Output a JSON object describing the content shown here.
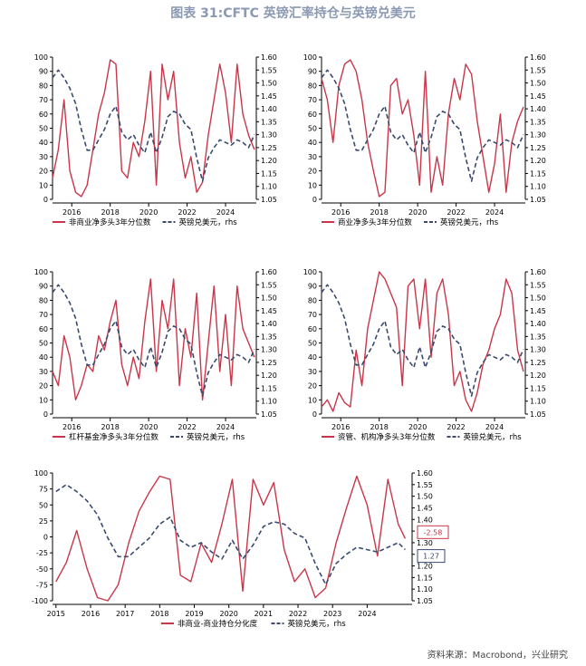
{
  "title": "图表 31:CFTC 英镑汇率持仓与英镑兑美元",
  "source": "资料来源：Macrobond，兴业研究",
  "colors": {
    "red": "#c9364a",
    "navy": "#3a4a6e",
    "title": "#8c99b3"
  },
  "chart_data": [
    {
      "type": "line",
      "ylim": [
        0,
        100
      ],
      "y_ticks": [
        0,
        10,
        20,
        30,
        40,
        50,
        60,
        70,
        80,
        90,
        100
      ],
      "y2lim": [
        1.05,
        1.6
      ],
      "y2_ticks": [
        "1.05",
        "1.10",
        "1.15",
        "1.20",
        "1.25",
        "1.30",
        "1.35",
        "1.40",
        "1.45",
        "1.50",
        "1.55",
        "1.60"
      ],
      "xlim": [
        2015.0,
        2025.6
      ],
      "x_ticks": [
        2016,
        2018,
        2020,
        2022,
        2024
      ],
      "legend": "bottom",
      "series": [
        {
          "name": "非商业净多头3年分位数",
          "axis": "left",
          "style": "solid",
          "x": [
            2015.0,
            2015.3,
            2015.6,
            2015.9,
            2016.2,
            2016.5,
            2016.8,
            2017.1,
            2017.4,
            2017.7,
            2018.0,
            2018.3,
            2018.6,
            2018.9,
            2019.2,
            2019.5,
            2019.8,
            2020.1,
            2020.4,
            2020.7,
            2021.0,
            2021.3,
            2021.6,
            2021.9,
            2022.2,
            2022.5,
            2022.8,
            2023.1,
            2023.4,
            2023.7,
            2024.0,
            2024.3,
            2024.6,
            2024.9,
            2025.2,
            2025.5
          ],
          "values": [
            15,
            35,
            70,
            20,
            5,
            2,
            10,
            35,
            60,
            75,
            98,
            95,
            20,
            15,
            40,
            30,
            55,
            90,
            10,
            95,
            70,
            90,
            40,
            15,
            30,
            5,
            12,
            45,
            70,
            95,
            75,
            40,
            95,
            60,
            45,
            35
          ]
        },
        {
          "name": "英镑兑美元，rhs",
          "axis": "right",
          "style": "dashed",
          "x": [
            2015.0,
            2015.3,
            2015.6,
            2015.9,
            2016.2,
            2016.5,
            2016.8,
            2017.1,
            2017.4,
            2017.7,
            2018.0,
            2018.3,
            2018.6,
            2018.9,
            2019.2,
            2019.5,
            2019.8,
            2020.1,
            2020.4,
            2020.7,
            2021.0,
            2021.3,
            2021.6,
            2021.9,
            2022.2,
            2022.5,
            2022.8,
            2023.1,
            2023.4,
            2023.7,
            2024.0,
            2024.3,
            2024.6,
            2024.9,
            2025.2,
            2025.5
          ],
          "values": [
            1.52,
            1.55,
            1.52,
            1.48,
            1.42,
            1.32,
            1.24,
            1.24,
            1.28,
            1.32,
            1.38,
            1.41,
            1.31,
            1.28,
            1.3,
            1.26,
            1.23,
            1.31,
            1.23,
            1.29,
            1.37,
            1.39,
            1.38,
            1.34,
            1.32,
            1.21,
            1.12,
            1.21,
            1.25,
            1.28,
            1.27,
            1.26,
            1.28,
            1.27,
            1.25,
            1.3
          ]
        }
      ]
    },
    {
      "type": "line",
      "ylim": [
        0,
        100
      ],
      "y_ticks": [
        0,
        10,
        20,
        30,
        40,
        50,
        60,
        70,
        80,
        90,
        100
      ],
      "y2lim": [
        1.05,
        1.6
      ],
      "y2_ticks": [
        "1.05",
        "1.10",
        "1.15",
        "1.20",
        "1.25",
        "1.30",
        "1.35",
        "1.40",
        "1.45",
        "1.50",
        "1.55",
        "1.60"
      ],
      "xlim": [
        2015.0,
        2025.6
      ],
      "x_ticks": [
        2016,
        2018,
        2020,
        2022,
        2024
      ],
      "legend": "bottom",
      "series": [
        {
          "name": "商业净多头3年分位数",
          "axis": "left",
          "style": "solid",
          "x": [
            2015.0,
            2015.3,
            2015.6,
            2015.9,
            2016.2,
            2016.5,
            2016.8,
            2017.1,
            2017.4,
            2017.7,
            2018.0,
            2018.3,
            2018.6,
            2018.9,
            2019.2,
            2019.5,
            2019.8,
            2020.1,
            2020.4,
            2020.7,
            2021.0,
            2021.3,
            2021.6,
            2021.9,
            2022.2,
            2022.5,
            2022.8,
            2023.1,
            2023.4,
            2023.7,
            2024.0,
            2024.3,
            2024.6,
            2024.9,
            2025.2,
            2025.5
          ],
          "values": [
            85,
            70,
            40,
            80,
            95,
            98,
            90,
            70,
            40,
            20,
            2,
            5,
            80,
            85,
            60,
            70,
            45,
            10,
            90,
            5,
            30,
            10,
            60,
            85,
            70,
            95,
            88,
            55,
            30,
            5,
            25,
            60,
            5,
            40,
            55,
            65
          ]
        },
        {
          "name": "英镑兑美元，rhs",
          "axis": "right",
          "style": "dashed",
          "x": [
            2015.0,
            2015.3,
            2015.6,
            2015.9,
            2016.2,
            2016.5,
            2016.8,
            2017.1,
            2017.4,
            2017.7,
            2018.0,
            2018.3,
            2018.6,
            2018.9,
            2019.2,
            2019.5,
            2019.8,
            2020.1,
            2020.4,
            2020.7,
            2021.0,
            2021.3,
            2021.6,
            2021.9,
            2022.2,
            2022.5,
            2022.8,
            2023.1,
            2023.4,
            2023.7,
            2024.0,
            2024.3,
            2024.6,
            2024.9,
            2025.2,
            2025.5
          ],
          "values": [
            1.52,
            1.55,
            1.52,
            1.48,
            1.42,
            1.32,
            1.24,
            1.24,
            1.28,
            1.32,
            1.38,
            1.41,
            1.31,
            1.28,
            1.3,
            1.26,
            1.23,
            1.31,
            1.23,
            1.29,
            1.37,
            1.39,
            1.38,
            1.34,
            1.32,
            1.21,
            1.12,
            1.21,
            1.25,
            1.28,
            1.27,
            1.26,
            1.28,
            1.27,
            1.25,
            1.3
          ]
        }
      ]
    },
    {
      "type": "line",
      "ylim": [
        0,
        100
      ],
      "y_ticks": [
        0,
        10,
        20,
        30,
        40,
        50,
        60,
        70,
        80,
        90,
        100
      ],
      "y2lim": [
        1.05,
        1.6
      ],
      "y2_ticks": [
        "1.05",
        "1.10",
        "1.15",
        "1.20",
        "1.25",
        "1.30",
        "1.35",
        "1.40",
        "1.45",
        "1.50",
        "1.55",
        "1.60"
      ],
      "xlim": [
        2015.0,
        2025.6
      ],
      "x_ticks": [
        2016,
        2018,
        2020,
        2022,
        2024
      ],
      "legend": "bottom",
      "series": [
        {
          "name": "杠杆基金净多头3年分位数",
          "axis": "left",
          "style": "solid",
          "x": [
            2015.0,
            2015.3,
            2015.6,
            2015.9,
            2016.2,
            2016.5,
            2016.8,
            2017.1,
            2017.4,
            2017.7,
            2018.0,
            2018.3,
            2018.6,
            2018.9,
            2019.2,
            2019.5,
            2019.8,
            2020.1,
            2020.4,
            2020.7,
            2021.0,
            2021.3,
            2021.6,
            2021.9,
            2022.2,
            2022.5,
            2022.8,
            2023.1,
            2023.4,
            2023.7,
            2024.0,
            2024.3,
            2024.6,
            2024.9,
            2025.2,
            2025.5
          ],
          "values": [
            30,
            20,
            55,
            40,
            10,
            20,
            35,
            30,
            55,
            45,
            65,
            80,
            35,
            20,
            40,
            25,
            65,
            95,
            30,
            80,
            60,
            95,
            20,
            60,
            40,
            85,
            10,
            50,
            90,
            30,
            70,
            20,
            90,
            60,
            50,
            40
          ]
        },
        {
          "name": "英镑兑美元，rhs",
          "axis": "right",
          "style": "dashed",
          "x": [
            2015.0,
            2015.3,
            2015.6,
            2015.9,
            2016.2,
            2016.5,
            2016.8,
            2017.1,
            2017.4,
            2017.7,
            2018.0,
            2018.3,
            2018.6,
            2018.9,
            2019.2,
            2019.5,
            2019.8,
            2020.1,
            2020.4,
            2020.7,
            2021.0,
            2021.3,
            2021.6,
            2021.9,
            2022.2,
            2022.5,
            2022.8,
            2023.1,
            2023.4,
            2023.7,
            2024.0,
            2024.3,
            2024.6,
            2024.9,
            2025.2,
            2025.5
          ],
          "values": [
            1.52,
            1.55,
            1.52,
            1.48,
            1.42,
            1.32,
            1.24,
            1.24,
            1.28,
            1.32,
            1.38,
            1.41,
            1.31,
            1.28,
            1.3,
            1.26,
            1.23,
            1.31,
            1.23,
            1.29,
            1.37,
            1.39,
            1.38,
            1.34,
            1.32,
            1.21,
            1.12,
            1.21,
            1.25,
            1.28,
            1.27,
            1.26,
            1.28,
            1.27,
            1.25,
            1.3
          ]
        }
      ]
    },
    {
      "type": "line",
      "ylim": [
        0,
        100
      ],
      "y_ticks": [
        0,
        10,
        20,
        30,
        40,
        50,
        60,
        70,
        80,
        90,
        100
      ],
      "y2lim": [
        1.05,
        1.6
      ],
      "y2_ticks": [
        "1.05",
        "1.10",
        "1.15",
        "1.20",
        "1.25",
        "1.30",
        "1.35",
        "1.40",
        "1.45",
        "1.50",
        "1.55",
        "1.60"
      ],
      "xlim": [
        2015.0,
        2025.6
      ],
      "x_ticks": [
        2016,
        2018,
        2020,
        2022,
        2024
      ],
      "legend": "bottom",
      "series": [
        {
          "name": "资管、机构净多头3年分位数",
          "axis": "left",
          "style": "solid",
          "x": [
            2015.0,
            2015.3,
            2015.6,
            2015.9,
            2016.2,
            2016.5,
            2016.8,
            2017.1,
            2017.4,
            2017.7,
            2018.0,
            2018.3,
            2018.6,
            2018.9,
            2019.2,
            2019.5,
            2019.8,
            2020.1,
            2020.4,
            2020.7,
            2021.0,
            2021.3,
            2021.6,
            2021.9,
            2022.2,
            2022.5,
            2022.8,
            2023.1,
            2023.4,
            2023.7,
            2024.0,
            2024.3,
            2024.6,
            2024.9,
            2025.2,
            2025.5
          ],
          "values": [
            5,
            10,
            2,
            15,
            8,
            5,
            45,
            20,
            60,
            80,
            100,
            95,
            85,
            75,
            20,
            90,
            95,
            60,
            95,
            40,
            85,
            95,
            70,
            20,
            30,
            10,
            2,
            15,
            35,
            45,
            60,
            70,
            95,
            85,
            45,
            30
          ]
        },
        {
          "name": "英镑兑美元，rhs",
          "axis": "right",
          "style": "dashed",
          "x": [
            2015.0,
            2015.3,
            2015.6,
            2015.9,
            2016.2,
            2016.5,
            2016.8,
            2017.1,
            2017.4,
            2017.7,
            2018.0,
            2018.3,
            2018.6,
            2018.9,
            2019.2,
            2019.5,
            2019.8,
            2020.1,
            2020.4,
            2020.7,
            2021.0,
            2021.3,
            2021.6,
            2021.9,
            2022.2,
            2022.5,
            2022.8,
            2023.1,
            2023.4,
            2023.7,
            2024.0,
            2024.3,
            2024.6,
            2024.9,
            2025.2,
            2025.5
          ],
          "values": [
            1.52,
            1.55,
            1.52,
            1.48,
            1.42,
            1.32,
            1.24,
            1.24,
            1.28,
            1.32,
            1.38,
            1.41,
            1.31,
            1.28,
            1.3,
            1.26,
            1.23,
            1.31,
            1.23,
            1.29,
            1.37,
            1.39,
            1.38,
            1.34,
            1.32,
            1.21,
            1.12,
            1.21,
            1.25,
            1.28,
            1.27,
            1.26,
            1.28,
            1.27,
            1.25,
            1.3
          ]
        }
      ]
    },
    {
      "type": "line",
      "ylim": [
        -100,
        100
      ],
      "y_ticks": [
        -100,
        -75,
        -50,
        -25,
        0,
        25,
        50,
        75,
        100
      ],
      "y2lim": [
        1.05,
        1.6
      ],
      "y2_ticks": [
        "1.05",
        "1.10",
        "1.15",
        "1.20",
        "1.25",
        "1.30",
        "1.35",
        "1.40",
        "1.45",
        "1.50",
        "1.55",
        "1.60"
      ],
      "xlim": [
        2014.9,
        2025.3
      ],
      "x_ticks": [
        2015,
        2016,
        2017,
        2018,
        2019,
        2020,
        2021,
        2022,
        2023,
        2024
      ],
      "legend": "bottom",
      "last_labels": {
        "left": "-2.58",
        "right": "1.27"
      },
      "series": [
        {
          "name": "非商业-商业持仓分化度",
          "axis": "left",
          "style": "solid",
          "x": [
            2015.0,
            2015.3,
            2015.6,
            2015.9,
            2016.2,
            2016.5,
            2016.8,
            2017.1,
            2017.4,
            2017.7,
            2018.0,
            2018.3,
            2018.6,
            2018.9,
            2019.2,
            2019.5,
            2019.8,
            2020.1,
            2020.4,
            2020.7,
            2021.0,
            2021.3,
            2021.6,
            2021.9,
            2022.2,
            2022.5,
            2022.8,
            2023.1,
            2023.4,
            2023.7,
            2024.0,
            2024.3,
            2024.6,
            2024.9,
            2025.1
          ],
          "values": [
            -70,
            -40,
            10,
            -50,
            -95,
            -100,
            -75,
            -10,
            40,
            70,
            95,
            90,
            -60,
            -70,
            -10,
            -40,
            20,
            90,
            -85,
            90,
            50,
            85,
            -20,
            -70,
            -50,
            -95,
            -80,
            -10,
            45,
            95,
            50,
            -30,
            90,
            20,
            -2.58
          ]
        },
        {
          "name": "英镑兑美元，rhs",
          "axis": "right",
          "style": "dashed",
          "x": [
            2015.0,
            2015.3,
            2015.6,
            2015.9,
            2016.2,
            2016.5,
            2016.8,
            2017.1,
            2017.4,
            2017.7,
            2018.0,
            2018.3,
            2018.6,
            2018.9,
            2019.2,
            2019.5,
            2019.8,
            2020.1,
            2020.4,
            2020.7,
            2021.0,
            2021.3,
            2021.6,
            2021.9,
            2022.2,
            2022.5,
            2022.8,
            2023.1,
            2023.4,
            2023.7,
            2024.0,
            2024.3,
            2024.6,
            2024.9,
            2025.1
          ],
          "values": [
            1.52,
            1.55,
            1.52,
            1.48,
            1.42,
            1.32,
            1.24,
            1.24,
            1.28,
            1.32,
            1.38,
            1.41,
            1.31,
            1.28,
            1.3,
            1.26,
            1.23,
            1.31,
            1.23,
            1.29,
            1.37,
            1.39,
            1.38,
            1.34,
            1.32,
            1.21,
            1.12,
            1.21,
            1.25,
            1.28,
            1.27,
            1.26,
            1.28,
            1.3,
            1.27
          ]
        }
      ]
    }
  ]
}
